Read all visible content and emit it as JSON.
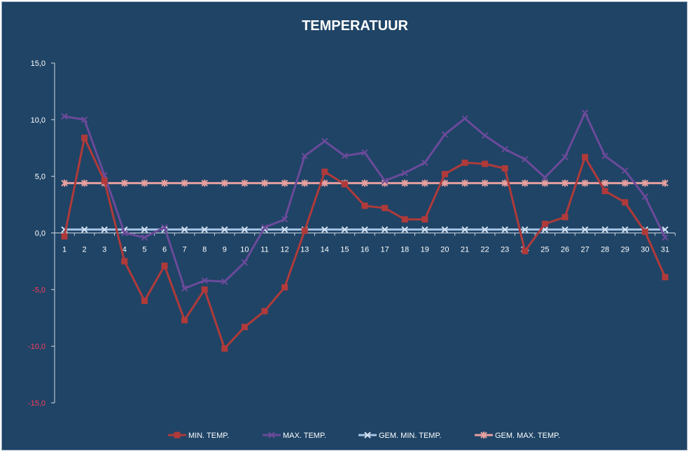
{
  "chart_data": {
    "type": "line",
    "title": "TEMPERATUUR",
    "xlabel": "",
    "ylabel": "",
    "ylim": [
      -15,
      15
    ],
    "yticks": [
      "15,0",
      "10,0",
      "5,0",
      "0,0",
      "-5,0",
      "-10,0",
      "-15,0"
    ],
    "ytick_values": [
      15,
      10,
      5,
      0,
      -5,
      -10,
      -15
    ],
    "categories": [
      "1",
      "2",
      "3",
      "4",
      "5",
      "6",
      "7",
      "8",
      "9",
      "10",
      "11",
      "12",
      "13",
      "14",
      "15",
      "16",
      "17",
      "18",
      "19",
      "20",
      "21",
      "22",
      "23",
      "24",
      "25",
      "26",
      "27",
      "28",
      "29",
      "30",
      "31"
    ],
    "grid": false,
    "legend_position": "bottom",
    "series": [
      {
        "name": "MIN. TEMP.",
        "color": "#b03a3a",
        "marker": "square",
        "values": [
          -0.3,
          8.4,
          4.6,
          -2.5,
          -6.0,
          -2.9,
          -7.7,
          -5.0,
          -10.2,
          -8.3,
          -6.9,
          -4.8,
          0.2,
          5.4,
          4.3,
          2.4,
          2.2,
          1.2,
          1.2,
          5.2,
          6.2,
          6.1,
          5.7,
          -1.6,
          0.8,
          1.4,
          6.7,
          3.7,
          2.7,
          0.1,
          -3.9
        ]
      },
      {
        "name": "MAX. TEMP.",
        "color": "#6b4a9a",
        "marker": "x",
        "values": [
          10.3,
          10.0,
          5.1,
          0.0,
          -0.4,
          0.5,
          -4.9,
          -4.2,
          -4.3,
          -2.6,
          0.5,
          1.2,
          6.8,
          8.1,
          6.8,
          7.1,
          4.6,
          5.3,
          6.2,
          8.7,
          10.1,
          8.6,
          7.4,
          6.5,
          4.9,
          6.7,
          10.6,
          6.8,
          5.5,
          3.2,
          -0.4
        ]
      },
      {
        "name": "GEM. MIN. TEMP.",
        "color": "#a9c4e4",
        "marker": "x",
        "values": [
          0.3,
          0.3,
          0.3,
          0.3,
          0.3,
          0.3,
          0.3,
          0.3,
          0.3,
          0.3,
          0.3,
          0.3,
          0.3,
          0.3,
          0.3,
          0.3,
          0.3,
          0.3,
          0.3,
          0.3,
          0.3,
          0.3,
          0.3,
          0.3,
          0.3,
          0.3,
          0.3,
          0.3,
          0.3,
          0.3,
          0.3
        ]
      },
      {
        "name": "GEM. MAX. TEMP.",
        "color": "#e8a0a0",
        "marker": "star",
        "values": [
          4.4,
          4.4,
          4.4,
          4.4,
          4.4,
          4.4,
          4.4,
          4.4,
          4.4,
          4.4,
          4.4,
          4.4,
          4.4,
          4.4,
          4.4,
          4.4,
          4.4,
          4.4,
          4.4,
          4.4,
          4.4,
          4.4,
          4.4,
          4.4,
          4.4,
          4.4,
          4.4,
          4.4,
          4.4,
          4.4,
          4.4
        ]
      }
    ],
    "colors": {
      "background": "#1f4466",
      "axis": "#d0d8e0",
      "positive_tick": "#ffffff",
      "negative_tick": "#ff3b5c"
    }
  }
}
